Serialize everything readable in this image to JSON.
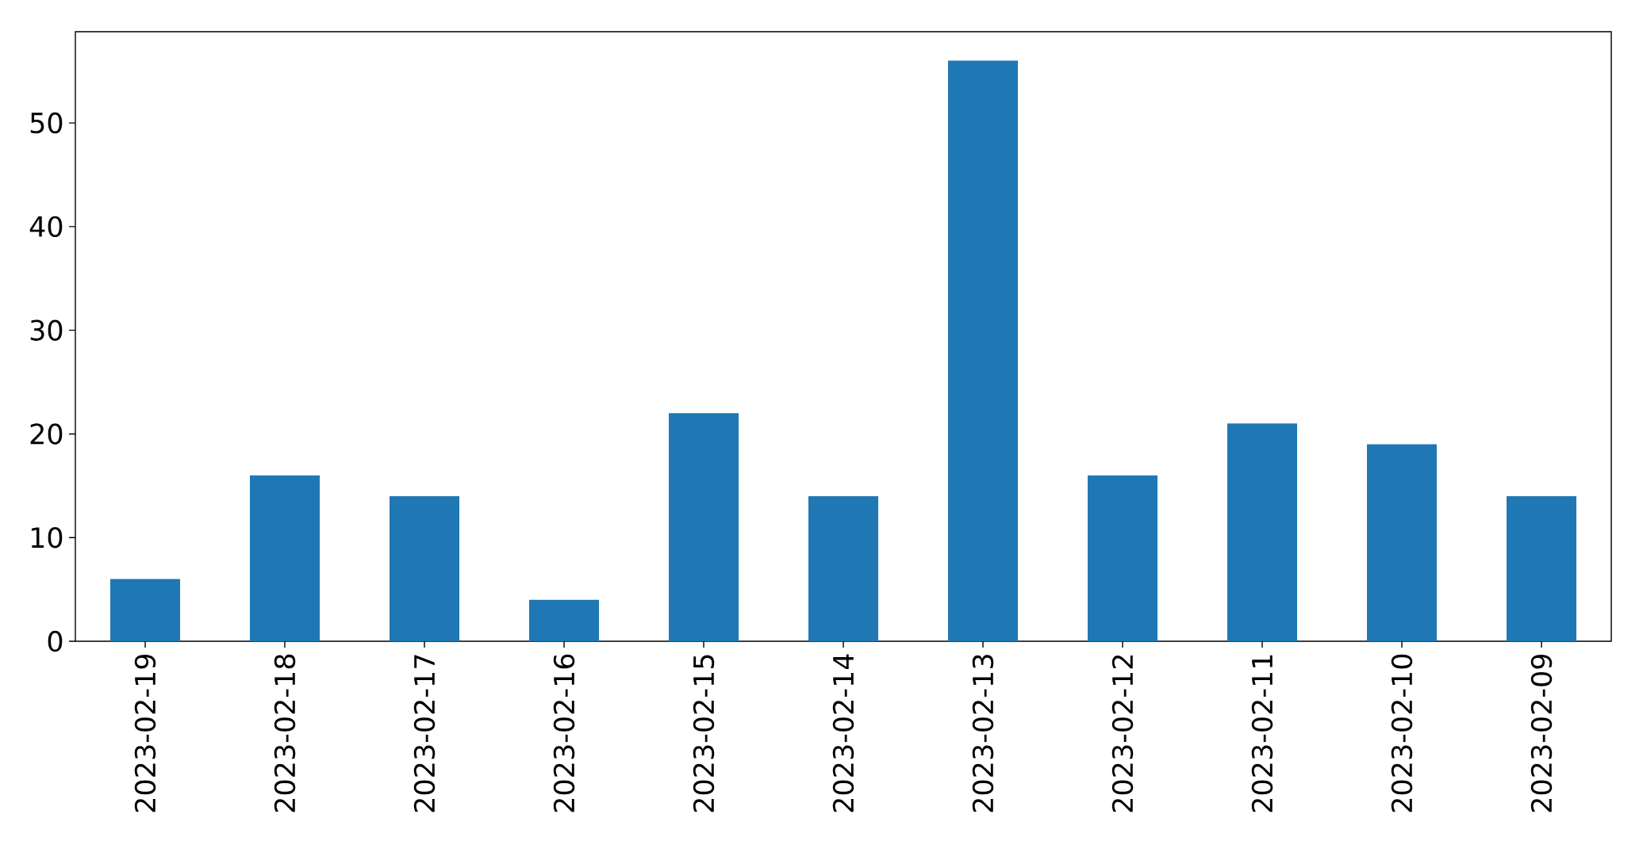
{
  "chart_data": {
    "type": "bar",
    "categories": [
      "2023-02-19",
      "2023-02-18",
      "2023-02-17",
      "2023-02-16",
      "2023-02-15",
      "2023-02-14",
      "2023-02-13",
      "2023-02-12",
      "2023-02-11",
      "2023-02-10",
      "2023-02-09"
    ],
    "values": [
      6,
      16,
      14,
      4,
      22,
      14,
      56,
      16,
      21,
      19,
      14
    ],
    "color": "#1f77b4",
    "ylim": [
      0,
      58.8
    ],
    "yticks": [
      0,
      10,
      20,
      30,
      40,
      50
    ]
  }
}
